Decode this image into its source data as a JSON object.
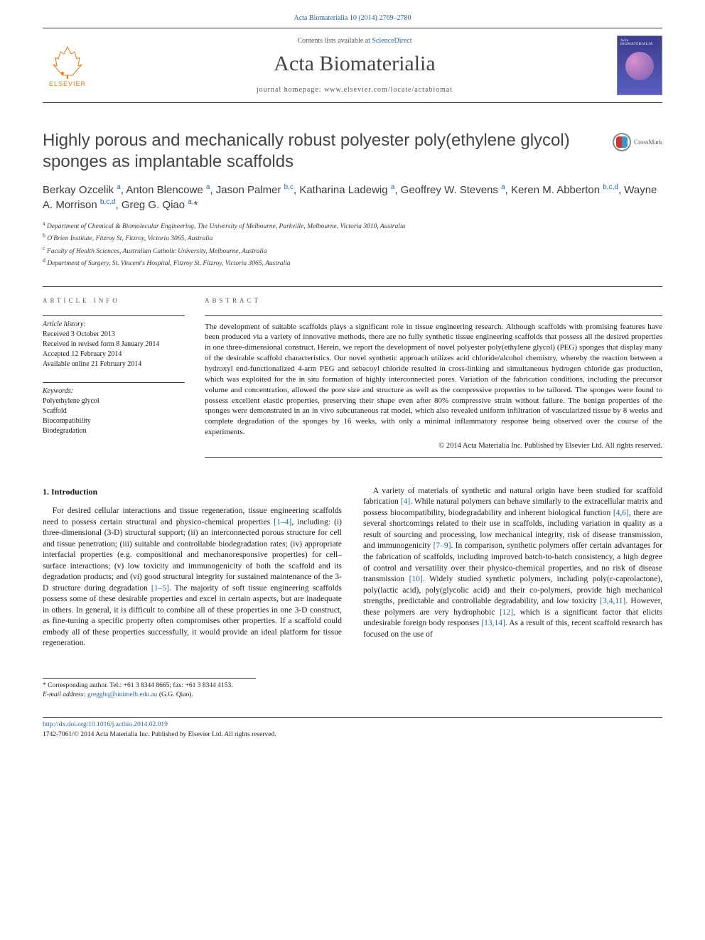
{
  "citation": "Acta Biomaterialia 10 (2014) 2769–2780",
  "masthead": {
    "publisher": "ELSEVIER",
    "contents_prefix": "Contents lists available at ",
    "contents_link": "ScienceDirect",
    "journal": "Acta Biomaterialia",
    "homepage_label": "journal homepage: ",
    "homepage_url": "www.elsevier.com/locate/actabiomat",
    "cover_title": "Acta BIOMATERIALIA"
  },
  "title": "Highly porous and mechanically robust polyester poly(ethylene glycol) sponges as implantable scaffolds",
  "crossmark": "CrossMark",
  "authors_html": "Berkay Ozcelik <sup>a</sup>, Anton Blencowe <sup>a</sup>, Jason Palmer <sup>b,c</sup>, Katharina Ladewig <sup>a</sup>, Geoffrey W. Stevens <sup>a</sup>, Keren M. Abberton <sup>b,c,d</sup>, Wayne A. Morrison <sup>b,c,d</sup>, Greg G. Qiao <sup>a,</sup>*",
  "affiliations": [
    {
      "sup": "a",
      "text": "Department of Chemical & Biomolecular Engineering, The University of Melbourne, Parkville, Melbourne, Victoria 3010, Australia"
    },
    {
      "sup": "b",
      "text": "O'Brien Institute, Fitzroy St, Fitzroy, Victoria 3065, Australia"
    },
    {
      "sup": "c",
      "text": "Faculty of Health Sciences, Australian Catholic University, Melbourne, Australia"
    },
    {
      "sup": "d",
      "text": "Department of Surgery, St. Vincent's Hospital, Fitzroy St, Fitzroy, Victoria 3065, Australia"
    }
  ],
  "article_info": {
    "heading": "ARTICLE INFO",
    "history_label": "Article history:",
    "history": [
      "Received 3 October 2013",
      "Received in revised form 8 January 2014",
      "Accepted 12 February 2014",
      "Available online 21 February 2014"
    ],
    "keywords_label": "Keywords:",
    "keywords": [
      "Polyethylene glycol",
      "Scaffold",
      "Biocompatibility",
      "Biodegradation"
    ]
  },
  "abstract": {
    "heading": "ABSTRACT",
    "text": "The development of suitable scaffolds plays a significant role in tissue engineering research. Although scaffolds with promising features have been produced via a variety of innovative methods, there are no fully synthetic tissue engineering scaffolds that possess all the desired properties in one three-dimensional construct. Herein, we report the development of novel polyester poly(ethylene glycol) (PEG) sponges that display many of the desirable scaffold characteristics. Our novel synthetic approach utilizes acid chloride/alcohol chemistry, whereby the reaction between a hydroxyl end-functionalized 4-arm PEG and sebacoyl chloride resulted in cross-linking and simultaneous hydrogen chloride gas production, which was exploited for the in situ formation of highly interconnected pores. Variation of the fabrication conditions, including the precursor volume and concentration, allowed the pore size and structure as well as the compressive properties to be tailored. The sponges were found to possess excellent elastic properties, preserving their shape even after 80% compressive strain without failure. The benign properties of the sponges were demonstrated in an in vivo subcutaneous rat model, which also revealed uniform infiltration of vascularized tissue by 8 weeks and complete degradation of the sponges by 16 weeks, with only a minimal inflammatory response being observed over the course of the experiments.",
    "copyright": "© 2014 Acta Materialia Inc. Published by Elsevier Ltd. All rights reserved."
  },
  "section1": {
    "heading": "1. Introduction",
    "para1_a": "For desired cellular interactions and tissue regeneration, tissue engineering scaffolds need to possess certain structural and physico-chemical properties ",
    "para1_ref1": "[1–4]",
    "para1_b": ", including: (i) three-dimensional (3-D) structural support; (ii) an interconnected porous structure for cell and tissue penetration; (iii) suitable and controllable biodegradation rates; (iv) appropriate interfacial properties (e.g. compositional and mechanoresponsive properties) for cell–surface interactions; (v) low toxicity and immunogenicity of both the scaffold and its degradation products; and (vi) good structural integrity for sustained maintenance of the 3-D structure during degradation ",
    "para1_ref2": "[1–5]",
    "para1_c": ". The majority of soft tissue engineering scaffolds possess some of these desirable properties and excel in certain aspects, but are inadequate in others. In general, it is difficult to combine all of these properties in one 3-D construct, as fine-tuning a specific property often compromises other properties. If a scaffold could embody all of these properties successfully, it would provide an ideal platform for tissue regeneration.",
    "para2_a": "A variety of materials of synthetic and natural origin have been studied for scaffold fabrication ",
    "para2_ref1": "[4]",
    "para2_b": ". While natural polymers can behave similarly to the extracellular matrix and possess biocompatibility, biodegradability and inherent biological function ",
    "para2_ref2": "[4,6]",
    "para2_c": ", there are several shortcomings related to their use in scaffolds, including variation in quality as a result of sourcing and processing, low mechanical integrity, risk of disease transmission, and immunogenicity ",
    "para2_ref3": "[7–9]",
    "para2_d": ". In comparison, synthetic polymers offer certain advantages for the fabrication of scaffolds, including improved batch-to-batch consistency, a high degree of control and versatility over their physico-chemical properties, and no risk of disease transmission ",
    "para2_ref4": "[10]",
    "para2_e": ". Widely studied synthetic polymers, including poly(ε-caprolactone), poly(lactic acid), poly(glycolic acid) and their co-polymers, provide high mechanical strengths, predictable and controllable degradability, and low toxicity ",
    "para2_ref5": "[3,4,11]",
    "para2_f": ". However, these polymers are very hydrophobic ",
    "para2_ref6": "[12]",
    "para2_g": ", which is a significant factor that elicits undesirable foreign body responses ",
    "para2_ref7": "[13,14]",
    "para2_h": ". As a result of this, recent scaffold research has focused on the use of"
  },
  "corresponding": {
    "star": "*",
    "text": "Corresponding author. Tel.: +61 3 8344 8665; fax: +61 3 8344 4153.",
    "email_label": "E-mail address: ",
    "email": "gregghq@unimelb.edu.au",
    "email_who": " (G.G. Qiao)."
  },
  "footer": {
    "doi": "http://dx.doi.org/10.1016/j.actbio.2014.02.019",
    "issn_line": "1742-7061/© 2014 Acta Materialia Inc. Published by Elsevier Ltd. All rights reserved."
  },
  "colors": {
    "link": "#2a6496",
    "elsevier_orange": "#e67817",
    "text": "#1a1a1a",
    "heading_grey": "#454545"
  }
}
